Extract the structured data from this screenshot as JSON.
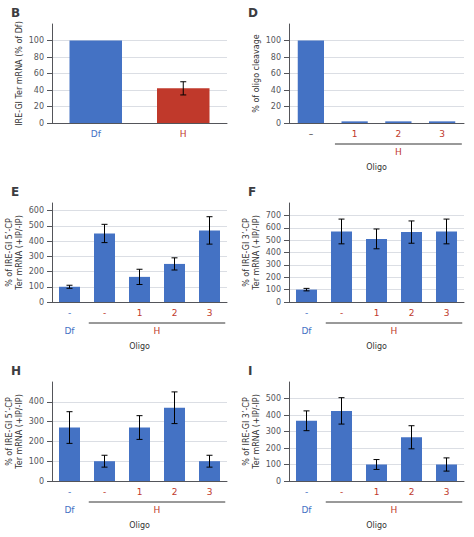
{
  "chart_data": [
    {
      "type": "bar",
      "title": "B",
      "categories": [
        "Df",
        "H"
      ],
      "values": [
        100,
        42
      ],
      "errors": [
        0,
        8
      ],
      "colors": [
        "#4472c4",
        "#c0392b"
      ],
      "ylabel": "IRE-GI Ter mRNA (% of Df)",
      "ylim": [
        0,
        120
      ],
      "yticks": [
        0,
        20,
        40,
        60,
        80,
        100
      ],
      "grid": true
    },
    {
      "type": "bar",
      "title": "D",
      "categories": [
        "–",
        "1",
        "2",
        "3"
      ],
      "values": [
        100,
        2,
        2,
        2
      ],
      "color": "#4472c4",
      "groups": [
        {
          "label": "H",
          "start": 1,
          "span": 3,
          "color": "#c0392b"
        }
      ],
      "xlabel": "Oligo",
      "ylabel": "% of oligo cleavage",
      "ylim": [
        0,
        120
      ],
      "yticks": [
        0,
        20,
        40,
        60,
        80,
        100
      ],
      "grid": true
    },
    {
      "type": "bar",
      "title": "E",
      "categories": [
        "-",
        "-",
        "1",
        "2",
        "3"
      ],
      "values": [
        100,
        450,
        165,
        250,
        470
      ],
      "errors": [
        10,
        60,
        50,
        40,
        90
      ],
      "color": "#4472c4",
      "groups": [
        {
          "label": "Df",
          "start": 0,
          "span": 1,
          "color": "#4472c4"
        },
        {
          "label": "H",
          "start": 1,
          "span": 4,
          "color": "#c0392b"
        }
      ],
      "xlabel": "Oligo",
      "ylabel": "% of IRE-GI 5’-CP\nTer mRNA (+IP/-IP)",
      "ylim": [
        0,
        650
      ],
      "yticks": [
        0,
        100,
        200,
        300,
        400,
        500,
        600
      ],
      "grid": true
    },
    {
      "type": "bar",
      "title": "F",
      "categories": [
        "-",
        "-",
        "1",
        "2",
        "3"
      ],
      "values": [
        100,
        570,
        510,
        565,
        570
      ],
      "errors": [
        10,
        100,
        80,
        90,
        100
      ],
      "color": "#4472c4",
      "groups": [
        {
          "label": "Df",
          "start": 0,
          "span": 1,
          "color": "#4472c4"
        },
        {
          "label": "H",
          "start": 1,
          "span": 4,
          "color": "#c0392b"
        }
      ],
      "xlabel": "Oligo",
      "ylabel": "% of IRE-GI 3’-CP\nTer mRNA (+IP/-IP)",
      "ylim": [
        0,
        800
      ],
      "yticks": [
        0,
        100,
        200,
        300,
        400,
        500,
        600,
        700
      ],
      "grid": true
    },
    {
      "type": "bar",
      "title": "H",
      "categories": [
        "-",
        "-",
        "1",
        "2",
        "3"
      ],
      "values": [
        270,
        100,
        270,
        370,
        100
      ],
      "errors": [
        80,
        30,
        60,
        80,
        30
      ],
      "color": "#4472c4",
      "groups": [
        {
          "label": "Df",
          "start": 0,
          "span": 1,
          "color": "#4472c4"
        },
        {
          "label": "H",
          "start": 1,
          "span": 4,
          "color": "#c0392b"
        }
      ],
      "xlabel": "Oligo",
      "ylabel": "% of IRE-GI 5’-CP\nTer mRNA (+IP/-IP)",
      "ylim": [
        0,
        500
      ],
      "yticks": [
        0,
        100,
        200,
        300,
        400
      ],
      "grid": true
    },
    {
      "type": "bar",
      "title": "I",
      "categories": [
        "-",
        "-",
        "1",
        "2",
        "3"
      ],
      "values": [
        365,
        425,
        100,
        265,
        100
      ],
      "errors": [
        60,
        80,
        30,
        70,
        40
      ],
      "color": "#4472c4",
      "groups": [
        {
          "label": "Df",
          "start": 0,
          "span": 1,
          "color": "#4472c4"
        },
        {
          "label": "H",
          "start": 1,
          "span": 4,
          "color": "#c0392b"
        }
      ],
      "xlabel": "Oligo",
      "ylabel": "% of IRE-GI 3’-CP\nTer mRNA (+IP/-IP)",
      "ylim": [
        0,
        600
      ],
      "yticks": [
        0,
        100,
        200,
        300,
        400,
        500
      ],
      "grid": true
    }
  ]
}
